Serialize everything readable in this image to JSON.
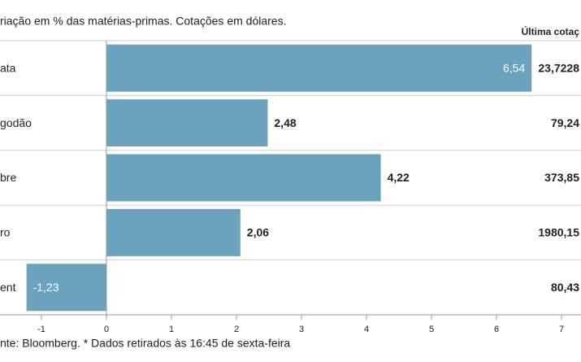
{
  "chart_data": {
    "type": "bar",
    "orientation": "horizontal",
    "title": "riação em % das matérias-primas. Cotações em dólares.",
    "categories": [
      "ata",
      "godão",
      "bre",
      "ro",
      "ent"
    ],
    "values": [
      6.54,
      2.48,
      4.22,
      2.06,
      -1.23
    ],
    "value_labels": [
      "6,54",
      "2,48",
      "4,22",
      "2,06",
      "-1,23"
    ],
    "color": "#6ba3be",
    "last_quote_header": "Última cotaç",
    "last_quote": [
      "23,7228",
      "79,24",
      "373,85",
      "1980,15",
      "80,43"
    ],
    "xlim": [
      -1.6375,
      7.3
    ],
    "xticks": [
      -1,
      0,
      1,
      2,
      3,
      4,
      5,
      6,
      7
    ],
    "source": "nte: Bloomberg.  * Dados retirados às 16:45 de sexta-feira"
  }
}
